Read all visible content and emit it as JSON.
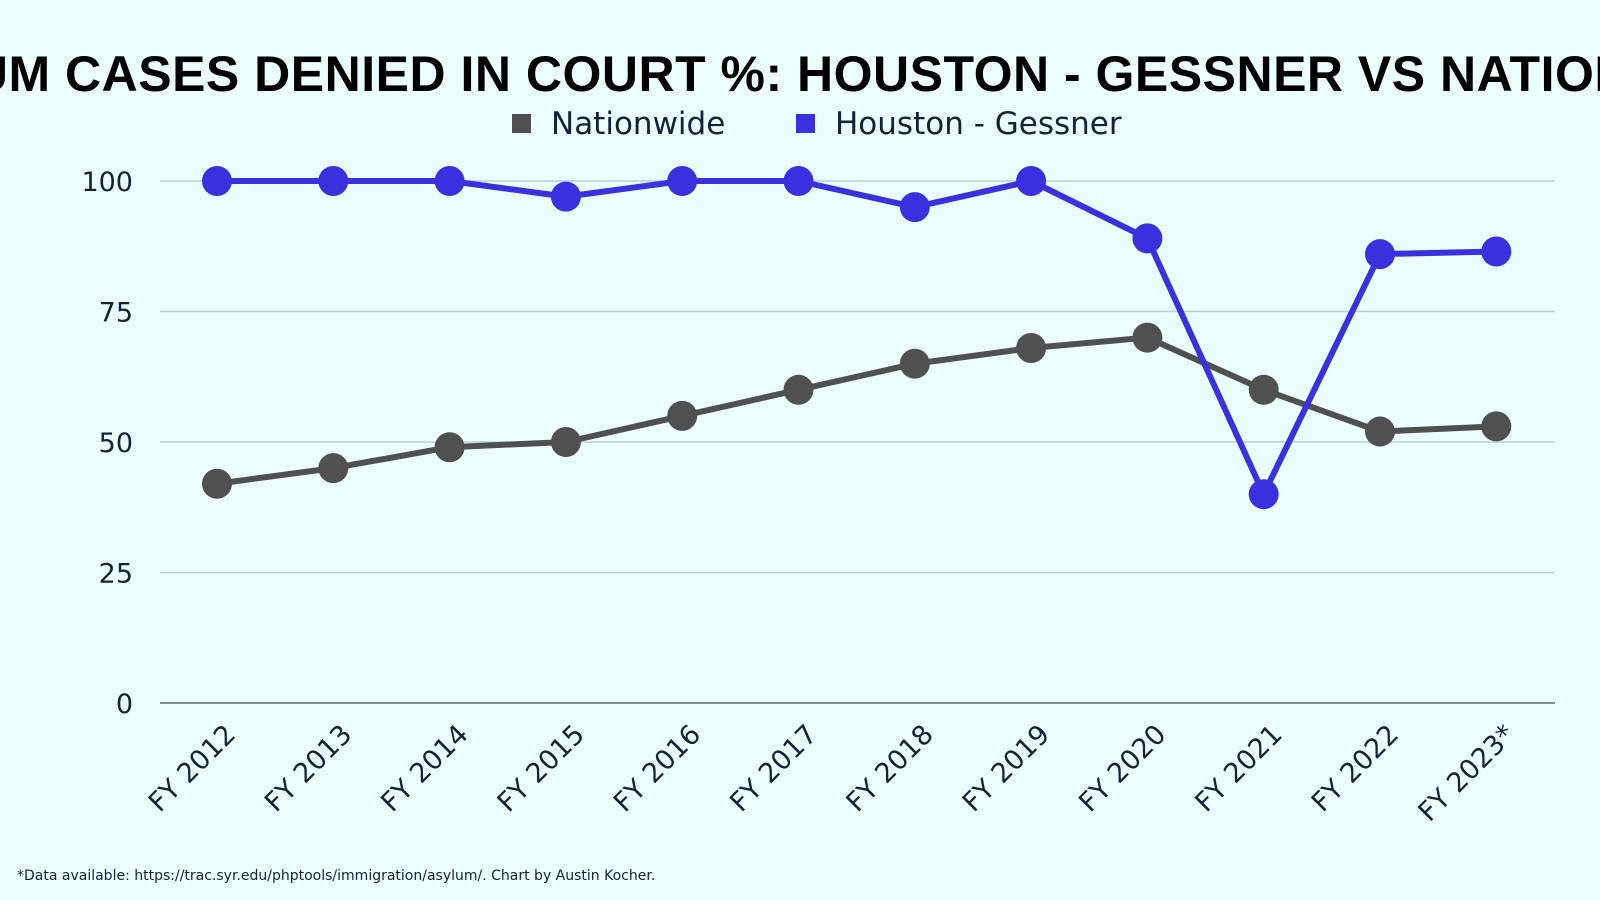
{
  "chart_data": {
    "type": "line",
    "title": "ASYLUM CASES DENIED IN COURT %: HOUSTON - GESSNER VS NATIONWIDE",
    "xlabel": "",
    "ylabel": "",
    "categories": [
      "FY 2012",
      "FY 2013",
      "FY 2014",
      "FY 2015",
      "FY 2016",
      "FY 2017",
      "FY 2018",
      "FY 2019",
      "FY 2020",
      "FY 2021",
      "FY 2022",
      "FY 2023*"
    ],
    "y_ticks": [
      "0",
      "25",
      "50",
      "75",
      "100"
    ],
    "ylim": [
      0,
      100
    ],
    "grid": true,
    "legend_position": "top-center",
    "series": [
      {
        "name": "Nationwide",
        "color": "#505050",
        "values": [
          42,
          45,
          49,
          50,
          55,
          60,
          65,
          68,
          70,
          60,
          52,
          53
        ]
      },
      {
        "name": "Houston - Gessner",
        "color": "#3a30dd",
        "values": [
          100,
          100,
          100,
          97,
          100,
          100,
          95,
          100,
          89,
          40,
          86,
          86.5
        ]
      }
    ],
    "footnote": "*Data available: https://trac.syr.edu/phptools/immigration/asylum/. Chart by Austin Kocher."
  },
  "colors": {
    "background": "#ebffff",
    "gridline": "#b9cfd1",
    "axis": "#7b8f96",
    "text": "#12223a"
  }
}
